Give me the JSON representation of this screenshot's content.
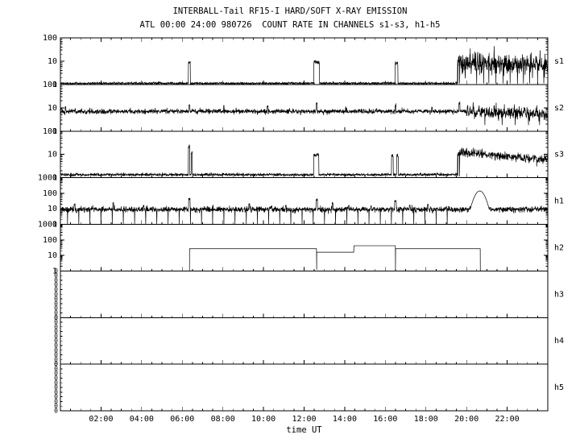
{
  "chart_data": {
    "type": "line",
    "title": "INTERBALL-Tail RF15-I HARD/SOFT X-RAY EMISSION",
    "subtitle": "ATL 00:00 24:00 980726  COUNT RATE IN CHANNELS s1-s3, h1-h5",
    "xlabel": "time UT",
    "x_range_hours": [
      0,
      24
    ],
    "x_tick_hours": [
      2,
      4,
      6,
      8,
      10,
      12,
      14,
      16,
      18,
      20,
      22
    ],
    "x_tick_labels": [
      "02:00",
      "04:00",
      "06:00",
      "08:00",
      "10:00",
      "12:00",
      "14:00",
      "16:00",
      "18:00",
      "20:00",
      "22:00"
    ],
    "minor_tick_step_hours": 0.5,
    "grid": false,
    "legend": "none",
    "line_color": "#000000",
    "panels": [
      {
        "label": "s1",
        "ymin": 1,
        "ymax": 100,
        "yticks": [
          {
            "v": 100,
            "label": "100"
          },
          {
            "v": 10,
            "label": "10"
          },
          {
            "v": 1,
            "label": "1"
          }
        ],
        "trace": {
          "baseline": {
            "level": 1.12,
            "sigma": 0.025
          },
          "pulses": [
            {
              "t": 6.35,
              "w": 0.1,
              "v": 9
            },
            {
              "t": 12.62,
              "w": 0.28,
              "v": 9
            },
            {
              "t": 16.55,
              "w": 0.14,
              "v": 8.5
            }
          ],
          "band": {
            "t0": 19.55,
            "t1": 24,
            "level0": 8.5,
            "level1": 7,
            "sigma": 0.22
          },
          "downspikes": {
            "times": [
              19.57,
              19.66,
              20.5,
              20.85,
              21.1,
              21.45,
              21.8,
              22.15,
              22.5,
              22.8,
              23.1,
              23.5,
              23.8
            ],
            "depth": 1.1
          }
        }
      },
      {
        "label": "s2",
        "ymin": 1,
        "ymax": 100,
        "yticks": [
          {
            "v": 100,
            "label": "100"
          },
          {
            "v": 10,
            "label": "10"
          },
          {
            "v": 1,
            "label": "1"
          }
        ],
        "trace": {
          "baseline": {
            "level": 7,
            "sigma": 0.05
          },
          "pulses": [
            {
              "t": 0.25,
              "w": 0.04,
              "v": 11
            },
            {
              "t": 6.35,
              "w": 0.05,
              "v": 13
            },
            {
              "t": 8.05,
              "w": 0.04,
              "v": 11
            },
            {
              "t": 10.2,
              "w": 0.05,
              "v": 12
            },
            {
              "t": 12.62,
              "w": 0.06,
              "v": 14
            },
            {
              "t": 14.05,
              "w": 0.04,
              "v": 10
            },
            {
              "t": 16.5,
              "w": 0.05,
              "v": 13
            },
            {
              "t": 18.3,
              "w": 0.04,
              "v": 10
            },
            {
              "t": 19.65,
              "w": 0.06,
              "v": 15
            }
          ],
          "band": {
            "t0": 20.0,
            "t1": 24,
            "level0": 7,
            "level1": 5.5,
            "sigma": 0.13
          },
          "downspikes": {
            "times": [
              20.9,
              21.75,
              22.4,
              23.05,
              23.6
            ],
            "depth": 1.8
          }
        }
      },
      {
        "label": "s3",
        "ymin": 1,
        "ymax": 100,
        "yticks": [
          {
            "v": 100,
            "label": "100"
          },
          {
            "v": 10,
            "label": "10"
          },
          {
            "v": 1,
            "label": "1"
          }
        ],
        "trace": {
          "baseline": {
            "level": 1.35,
            "sigma": 0.03
          },
          "pulses": [
            {
              "t": 6.33,
              "w": 0.07,
              "v": 22
            },
            {
              "t": 6.47,
              "w": 0.05,
              "v": 12
            },
            {
              "t": 12.6,
              "w": 0.26,
              "v": 9.5
            },
            {
              "t": 16.35,
              "w": 0.09,
              "v": 9
            },
            {
              "t": 16.6,
              "w": 0.09,
              "v": 9
            }
          ],
          "band": {
            "t0": 19.55,
            "t1": 24,
            "level0": 13,
            "level1": 5.5,
            "sigma": 0.1
          },
          "downspikes": {
            "times": [
              19.57,
              19.66
            ],
            "depth": 1.15
          }
        }
      },
      {
        "label": "h1",
        "ymin": 1,
        "ymax": 1000,
        "yticks": [
          {
            "v": 1000,
            "label": "1000"
          },
          {
            "v": 100,
            "label": "100"
          },
          {
            "v": 10,
            "label": "10"
          },
          {
            "v": 1,
            "label": "1"
          }
        ],
        "trace": {
          "baseline": {
            "level": 9,
            "sigma": 0.09
          },
          "pulses": [
            {
              "t": 0.7,
              "w": 0.05,
              "v": 20
            },
            {
              "t": 2.6,
              "w": 0.05,
              "v": 22
            },
            {
              "t": 4.1,
              "w": 0.04,
              "v": 15
            },
            {
              "t": 6.35,
              "w": 0.07,
              "v": 45
            },
            {
              "t": 7.5,
              "w": 0.04,
              "v": 16
            },
            {
              "t": 9.3,
              "w": 0.05,
              "v": 20
            },
            {
              "t": 10.4,
              "w": 0.04,
              "v": 15
            },
            {
              "t": 11.1,
              "w": 0.04,
              "v": 16
            },
            {
              "t": 12.62,
              "w": 0.08,
              "v": 38
            },
            {
              "t": 13.4,
              "w": 0.05,
              "v": 24
            },
            {
              "t": 14.2,
              "w": 0.04,
              "v": 16
            },
            {
              "t": 15.3,
              "w": 0.04,
              "v": 15
            },
            {
              "t": 16.5,
              "w": 0.08,
              "v": 30
            },
            {
              "t": 17.2,
              "w": 0.04,
              "v": 16
            },
            {
              "t": 18.1,
              "w": 0.05,
              "v": 18
            },
            {
              "t": 19.0,
              "w": 0.04,
              "v": 14
            }
          ],
          "gauss": [
            {
              "t": 20.65,
              "v": 140,
              "w": 0.2
            }
          ],
          "periodic_downspikes": {
            "start": 0.35,
            "step": 0.55,
            "end": 19.45,
            "depth": 1.05
          }
        }
      },
      {
        "label": "h2",
        "ymin": 1,
        "ymax": 1000,
        "yticks": [
          {
            "v": 1000,
            "label": "1000"
          },
          {
            "v": 100,
            "label": "100"
          },
          {
            "v": 10,
            "label": "10"
          },
          {
            "v": 1,
            "label": "1"
          }
        ],
        "trace": {
          "segments": [
            {
              "t0": 6.35,
              "t1": 12.62,
              "v": 27
            },
            {
              "t0": 12.62,
              "t1": 14.45,
              "v": 16
            },
            {
              "t0": 14.45,
              "t1": 16.5,
              "v": 42
            },
            {
              "t0": 16.5,
              "t1": 20.68,
              "v": 27
            }
          ],
          "edge_spikes": [
            {
              "t": 6.355,
              "v": 1
            },
            {
              "t": 12.62,
              "v": 1.2
            },
            {
              "t": 16.5,
              "v": 1.2
            },
            {
              "t": 20.678,
              "v": 1
            }
          ]
        }
      },
      {
        "label": "h3",
        "ymin": 1,
        "ymax": 1000,
        "zero_tick_count": 11,
        "zero_tick_label": "0",
        "yticks": [],
        "trace": null
      },
      {
        "label": "h4",
        "ymin": 1,
        "ymax": 1000,
        "zero_tick_count": 11,
        "zero_tick_label": "0",
        "yticks": [],
        "trace": null
      },
      {
        "label": "h5",
        "ymin": 1,
        "ymax": 1000,
        "zero_tick_count": 11,
        "zero_tick_label": "0",
        "yticks": [],
        "trace": null
      }
    ]
  }
}
